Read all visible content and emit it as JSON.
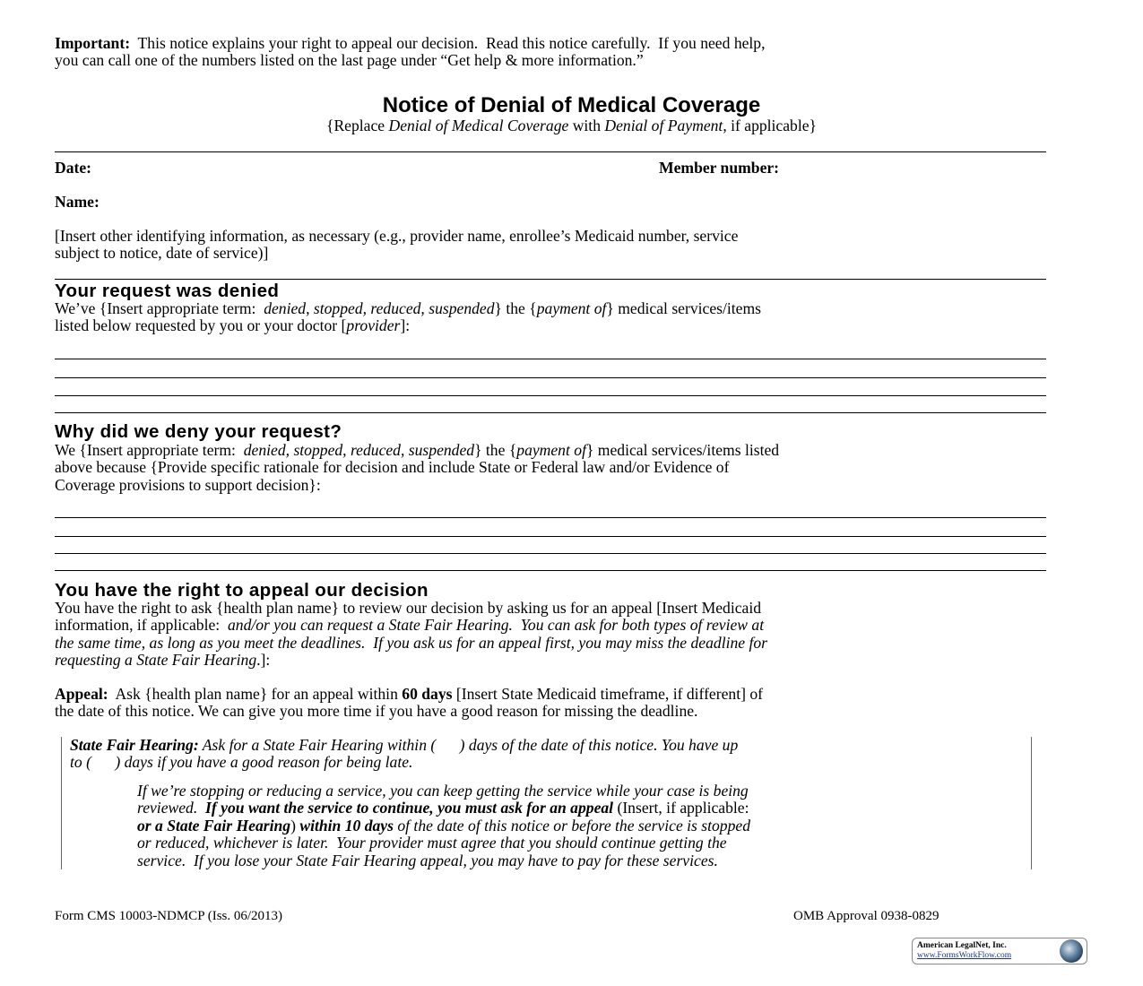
{
  "important": [
    [
      [
        "Important:",
        "b"
      ],
      [
        "  This notice explains your right to appeal our decision.  Read this notice carefully.  If you need help,",
        ""
      ]
    ],
    [
      [
        "you can call one of the numbers listed on the last page under “Get help & more information.”",
        ""
      ]
    ]
  ],
  "title": "Notice of Denial of Medical Coverage",
  "subtitle": [
    [
      [
        "{Replace ",
        ""
      ],
      [
        "Denial of Medical Coverage",
        "i"
      ],
      [
        " with ",
        ""
      ],
      [
        "Denial of Payment",
        "i"
      ],
      [
        ", if applicable}",
        ""
      ]
    ]
  ],
  "fields": {
    "date": "Date:",
    "member_number": "Member number:",
    "name": "Name:"
  },
  "identifying": [
    [
      [
        "[Insert other identifying information, as necessary (e.g., provider name, enrollee’s Medicaid number, service",
        ""
      ]
    ],
    [
      [
        "subject to notice, date of service)]",
        ""
      ]
    ]
  ],
  "request_denied": {
    "heading": "Your request was denied",
    "body": [
      [
        [
          "We’ve {Insert appropriate term:  ",
          ""
        ],
        [
          "denied, stopped, reduced, suspended",
          "i"
        ],
        [
          "} the {",
          ""
        ],
        [
          "payment of",
          "i"
        ],
        [
          "} medical services/items",
          ""
        ]
      ],
      [
        [
          "listed below requested by you or your doctor [",
          ""
        ],
        [
          "provider",
          "i"
        ],
        [
          "]:",
          ""
        ]
      ]
    ]
  },
  "why_denied": {
    "heading": "Why did we deny your request?",
    "body": [
      [
        [
          "We {Insert appropriate term:  ",
          ""
        ],
        [
          "denied, stopped, reduced, suspended",
          "i"
        ],
        [
          "} the {",
          ""
        ],
        [
          "payment of",
          "i"
        ],
        [
          "} medical services/items listed",
          ""
        ]
      ],
      [
        [
          "above because {Provide specific rationale for decision and include State or Federal law and/or Evidence of",
          ""
        ]
      ],
      [
        [
          "Coverage provisions to support decision}:",
          ""
        ]
      ]
    ]
  },
  "right_to_appeal": {
    "heading": "You have the right to appeal our decision",
    "body": [
      [
        [
          "You have the right to ask {health plan name} to review our decision by asking us for an appeal [Insert Medicaid",
          ""
        ]
      ],
      [
        [
          "information, if applicable:  ",
          ""
        ],
        [
          "and/or you can request a State Fair Hearing.  You can ask for both types of review at",
          "i"
        ]
      ],
      [
        [
          "the same time, as long as you meet the deadlines.  If you ask us for an appeal first, you may miss the deadline for",
          "i"
        ]
      ],
      [
        [
          "requesting a State Fair Hearing",
          "i"
        ],
        [
          ".]:",
          ""
        ]
      ]
    ],
    "appeal": [
      [
        [
          "Appeal:",
          "b"
        ],
        [
          "  Ask {health plan name} for an appeal within ",
          ""
        ],
        [
          "60 days",
          "b"
        ],
        [
          " [Insert State Medicaid timeframe, if different] of",
          ""
        ]
      ],
      [
        [
          "the date of this notice. We can give you more time if you have a good reason for missing the deadline.",
          ""
        ]
      ]
    ],
    "state_fair_hearing": [
      [
        [
          "State Fair Hearing:",
          "bi"
        ],
        [
          " Ask for a State Fair Hearing within (      ) days of the date of this notice. You have up",
          "i"
        ]
      ],
      [
        [
          "to (      ) days if you have a good reason for being late.",
          "i"
        ]
      ]
    ],
    "continue_service": [
      [
        [
          "If we’re stopping or reducing a service, you can keep getting the service while your case is being",
          "i"
        ]
      ],
      [
        [
          "reviewed.  ",
          "i"
        ],
        [
          "If you want the service to continue, you must ask for an appeal",
          "bi"
        ],
        [
          " (Insert, if applicable:",
          ""
        ]
      ],
      [
        [
          "or a State Fair Hearing",
          "bi"
        ],
        [
          ") ",
          ""
        ],
        [
          "within 10 days",
          "bi"
        ],
        [
          " of the date of this notice or before the service is stopped",
          "i"
        ]
      ],
      [
        [
          "or reduced, whichever is later.  Your provider must agree that you should continue getting the",
          "i"
        ]
      ],
      [
        [
          "service.  If you lose your State Fair Hearing appeal, you may have to pay for these services.",
          "i"
        ]
      ]
    ]
  },
  "footer": {
    "form": "Form CMS 10003-NDMCP (Iss. 06/2013)",
    "omb": "OMB Approval 0938-0829"
  },
  "logo": {
    "name": "American LegalNet, Inc.",
    "url": "www.FormsWorkFlow.com",
    "icon": "globe-icon",
    "link_color": "#1a2fa8"
  }
}
